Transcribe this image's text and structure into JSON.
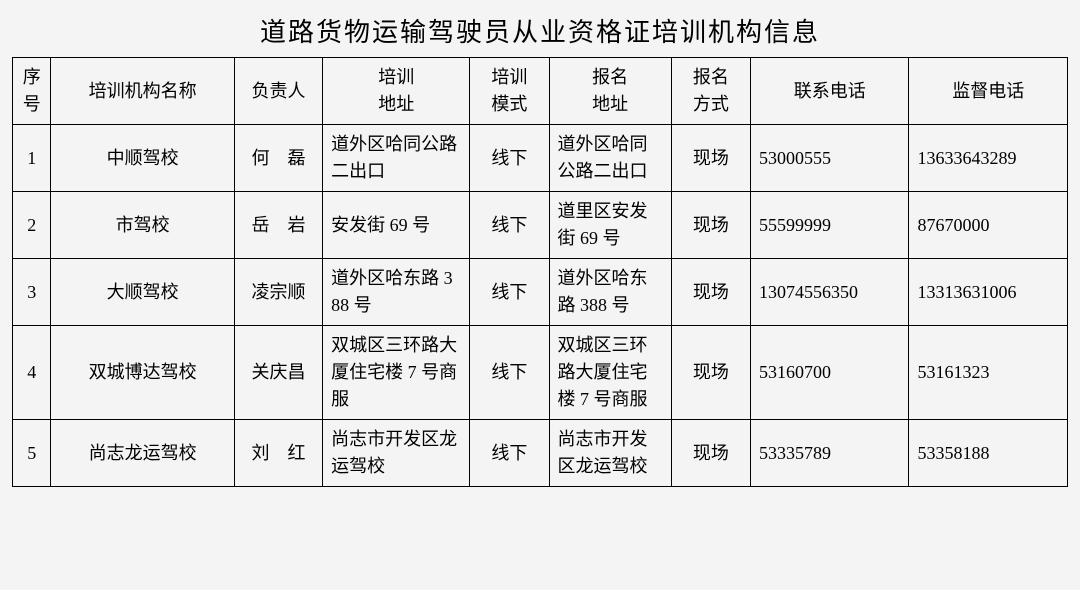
{
  "title": "道路货物运输驾驶员从业资格证培训机构信息",
  "styling": {
    "background_color": "#f3f4f3",
    "border_color": "#000000",
    "text_color": "#000000",
    "title_fontsize": 26,
    "cell_fontsize": 18,
    "font_family": "SimSun"
  },
  "columns": {
    "seq": "序号",
    "name": "培训机构名称",
    "person": "负责人",
    "taddr_l1": "培训",
    "taddr_l2": "地址",
    "tmode_l1": "培训",
    "tmode_l2": "模式",
    "raddr_l1": "报名",
    "raddr_l2": "地址",
    "rmode_l1": "报名",
    "rmode_l2": "方式",
    "phone": "联系电话",
    "super": "监督电话"
  },
  "rows": [
    {
      "seq": "1",
      "name": "中顺驾校",
      "person": "何　磊",
      "taddr": "道外区哈同公路二出口",
      "tmode": "线下",
      "raddr": "道外区哈同公路二出口",
      "rmode": "现场",
      "phone": "53000555",
      "super": "13633643289"
    },
    {
      "seq": "2",
      "name": "市驾校",
      "person": "岳　岩",
      "taddr": "安发街 69 号",
      "tmode": "线下",
      "raddr": "道里区安发街 69 号",
      "rmode": "现场",
      "phone": "55599999",
      "super": "87670000"
    },
    {
      "seq": "3",
      "name": "大顺驾校",
      "person": "凌宗顺",
      "taddr": "道外区哈东路 388 号",
      "tmode": "线下",
      "raddr": "道外区哈东路 388 号",
      "rmode": "现场",
      "phone": "13074556350",
      "super": "13313631006"
    },
    {
      "seq": "4",
      "name": "双城博达驾校",
      "person": "关庆昌",
      "taddr": "双城区三环路大厦住宅楼 7 号商服",
      "tmode": "线下",
      "raddr": "双城区三环路大厦住宅楼 7 号商服",
      "rmode": "现场",
      "phone": "53160700",
      "super": "53161323"
    },
    {
      "seq": "5",
      "name": "尚志龙运驾校",
      "person": "刘　红",
      "taddr": "尚志市开发区龙运驾校",
      "tmode": "线下",
      "raddr": "尚志市开发区龙运驾校",
      "rmode": "现场",
      "phone": "53335789",
      "super": "53358188"
    }
  ]
}
